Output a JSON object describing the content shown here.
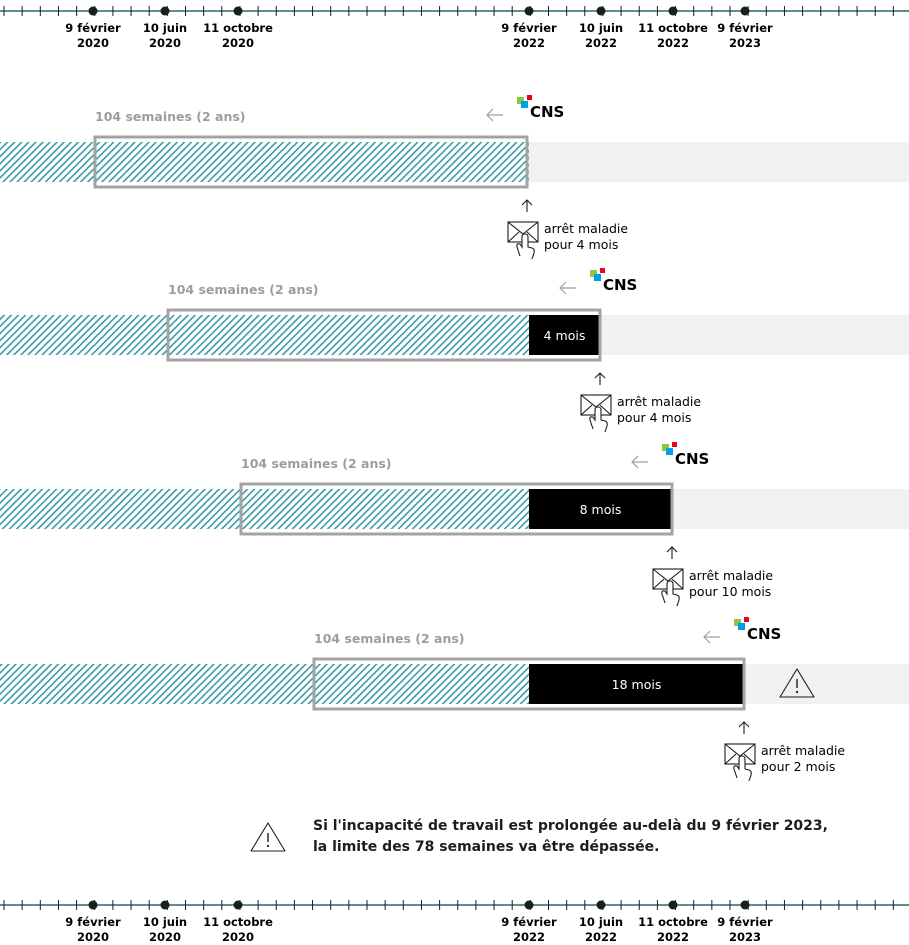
{
  "timeline": {
    "dates": [
      {
        "day": "9 février",
        "year": "2020"
      },
      {
        "day": "10 juin",
        "year": "2020"
      },
      {
        "day": "11 octobre",
        "year": "2020"
      },
      {
        "day": "9 février",
        "year": "2022"
      },
      {
        "day": "10 juin",
        "year": "2022"
      },
      {
        "day": "11 octobre",
        "year": "2022"
      },
      {
        "day": "9 février",
        "year": "2023"
      }
    ]
  },
  "rows": [
    {
      "period_label": "104 semaines (2 ans)",
      "insurer": "CNS",
      "block_label": "",
      "certificate": [
        "arrêt maladie",
        "pour 4 mois"
      ],
      "warning": false
    },
    {
      "period_label": "104 semaines (2 ans)",
      "insurer": "CNS",
      "block_label": "4 mois",
      "certificate": [
        "arrêt maladie",
        "pour 4 mois"
      ],
      "warning": false
    },
    {
      "period_label": "104 semaines (2 ans)",
      "insurer": "CNS",
      "block_label": "8 mois",
      "certificate": [
        "arrêt maladie",
        "pour 10 mois"
      ],
      "warning": false
    },
    {
      "period_label": "104 semaines (2 ans)",
      "insurer": "CNS",
      "block_label": "18 mois",
      "certificate": [
        "arrêt maladie",
        "pour 2 mois"
      ],
      "warning": true
    }
  ],
  "note": {
    "line1": "Si l'incapacité de travail est prolongée au-delà du 9 février 2023,",
    "line2": "la limite des 78 semaines va être dépassée."
  },
  "colors": {
    "axis": "#5f8d97",
    "hatch": "#3c9aa6",
    "band": "#f1f1f1",
    "frame": "#a3a3a3",
    "block": "#000000",
    "cns_green": "#8cc63e",
    "cns_blue": "#00a0e3",
    "cns_red": "#e30613"
  },
  "icons": [
    "cns-logo",
    "arrow-left-icon",
    "arrow-up-icon",
    "envelope-hand-icon",
    "warning-icon"
  ]
}
